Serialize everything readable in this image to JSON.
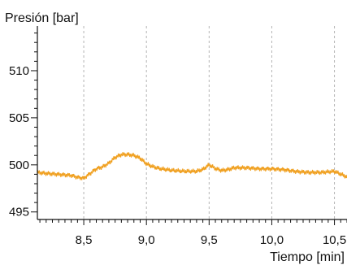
{
  "chart_data": {
    "type": "line",
    "title": "",
    "ylabel": "Presión [bar]",
    "xlabel": "Tiempo [min]",
    "xlim": [
      8.13,
      10.6
    ],
    "ylim": [
      494.2,
      514.4
    ],
    "x_ticks": [
      8.5,
      9.0,
      9.5,
      10.0,
      10.5
    ],
    "x_tick_labels": [
      "8,5",
      "9,0",
      "9,5",
      "10,0",
      "10,5"
    ],
    "x_minor_tick_step": 0.05,
    "y_ticks": [
      495,
      500,
      505,
      510
    ],
    "y_tick_labels": [
      "495",
      "500",
      "505",
      "510"
    ],
    "y_minor_tick_step": 1,
    "grid": "vertical dashed lines at major x ticks",
    "series": [
      {
        "color": "#f0a020",
        "x": [
          8.13,
          8.2,
          8.3,
          8.4,
          8.45,
          8.5,
          8.55,
          8.6,
          8.65,
          8.7,
          8.75,
          8.8,
          8.85,
          8.9,
          8.95,
          9.0,
          9.05,
          9.1,
          9.15,
          9.2,
          9.3,
          9.4,
          9.45,
          9.5,
          9.55,
          9.6,
          9.65,
          9.7,
          9.8,
          9.9,
          10.0,
          10.1,
          10.2,
          10.3,
          10.4,
          10.5,
          10.55,
          10.6
        ],
        "y": [
          499.2,
          499.1,
          499.0,
          498.9,
          498.7,
          498.6,
          499.1,
          499.6,
          499.8,
          500.2,
          500.8,
          501.1,
          501.1,
          501.0,
          500.7,
          500.1,
          499.8,
          499.6,
          499.5,
          499.4,
          499.3,
          499.3,
          499.5,
          500.0,
          499.6,
          499.4,
          499.5,
          499.7,
          499.7,
          499.6,
          499.6,
          499.5,
          499.3,
          499.2,
          499.2,
          499.3,
          499.0,
          498.7
        ]
      }
    ]
  }
}
